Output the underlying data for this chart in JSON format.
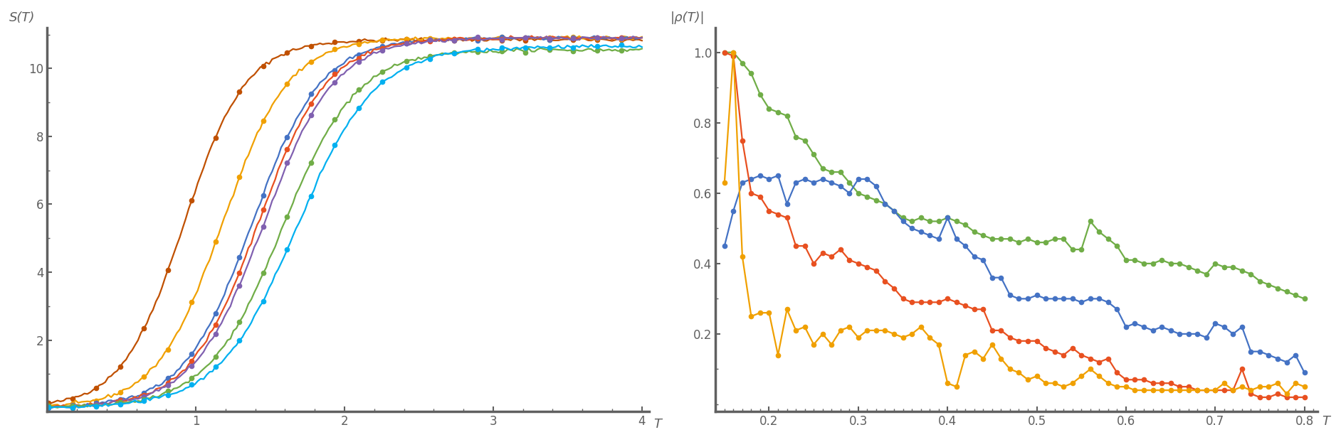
{
  "left_ylabel": "S(T)",
  "left_xlabel": "T",
  "right_ylabel": "|ρ(T)|",
  "right_xlabel": "T",
  "left_xlim": [
    0,
    4.05
  ],
  "left_ylim": [
    -0.1,
    11.2
  ],
  "right_xlim": [
    0.14,
    0.815
  ],
  "right_ylim": [
    -0.02,
    1.07
  ],
  "left_yticks": [
    2,
    4,
    6,
    8,
    10
  ],
  "right_yticks": [
    0.2,
    0.4,
    0.6,
    0.8,
    1.0
  ],
  "left_xticks": [
    1,
    2,
    3,
    4
  ],
  "right_xticks": [
    0.2,
    0.3,
    0.4,
    0.5,
    0.6,
    0.7,
    0.8
  ],
  "colors_left": [
    "#C05000",
    "#F0A000",
    "#4472C4",
    "#E85020",
    "#8060B0",
    "#70AD47",
    "#00B0F0"
  ],
  "colors_right": [
    "#70AD47",
    "#4472C4",
    "#E85020",
    "#F0A000"
  ],
  "axis_color": "#606060",
  "tick_color": "#606060",
  "label_color": "#606060",
  "background": "#FFFFFF",
  "marker": "o",
  "markersize": 4.5,
  "linewidth": 1.6
}
